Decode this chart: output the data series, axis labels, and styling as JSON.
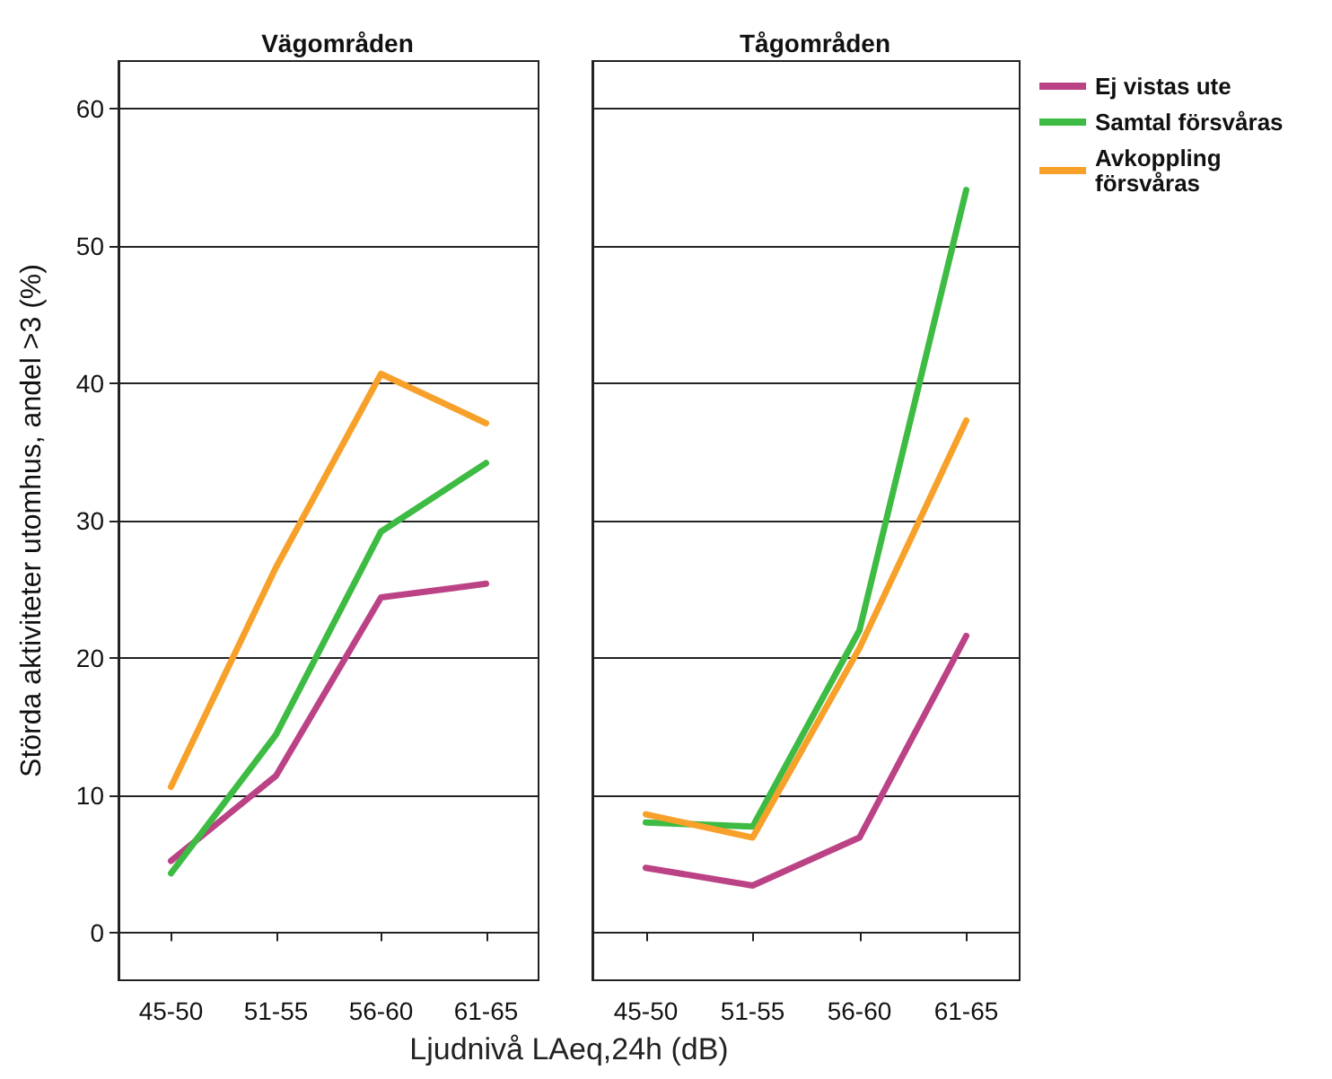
{
  "chart_data": [
    {
      "type": "line",
      "title": "Vägområden",
      "xlabel": "Ljudnivå LAeq,24h (dB)",
      "ylabel": "Störda aktiviteter utomhus, andel >3 (%)",
      "categories": [
        "45-50",
        "51-55",
        "56-60",
        "61-65"
      ],
      "ylim": [
        -3.5,
        63.5
      ],
      "yticks": [
        0,
        10,
        20,
        30,
        40,
        50,
        60
      ],
      "grid": "y",
      "legend": false,
      "marker": "none",
      "line_style": "solid",
      "series": [
        {
          "color": "#bb4385",
          "values": [
            5.2,
            11.4,
            24.4,
            25.4
          ]
        },
        {
          "color": "#3dbb43",
          "values": [
            4.3,
            14.4,
            29.2,
            34.2
          ]
        },
        {
          "color": "#f7a02a",
          "values": [
            10.6,
            26.6,
            40.7,
            37.1
          ]
        }
      ]
    },
    {
      "type": "line",
      "title": "Tågområden",
      "categories": [
        "45-50",
        "51-55",
        "56-60",
        "61-65"
      ],
      "ylim": [
        -3.5,
        63.5
      ],
      "yticks": [
        0,
        10,
        20,
        30,
        40,
        50,
        60
      ],
      "grid": "y",
      "legend": "right",
      "marker": "none",
      "line_style": "solid",
      "tick_labels": "x",
      "series": [
        {
          "name": "Ej vistas ute",
          "color": "#bb4385",
          "values": [
            4.7,
            3.4,
            6.9,
            21.6
          ]
        },
        {
          "name": "Samtal försvåras",
          "color": "#3dbb43",
          "values": [
            8.0,
            7.7,
            22.0,
            54.1
          ]
        },
        {
          "name": "Avkoppling försvåras",
          "color": "#f7a02a",
          "values": [
            8.6,
            6.9,
            20.7,
            37.3
          ]
        }
      ]
    }
  ]
}
